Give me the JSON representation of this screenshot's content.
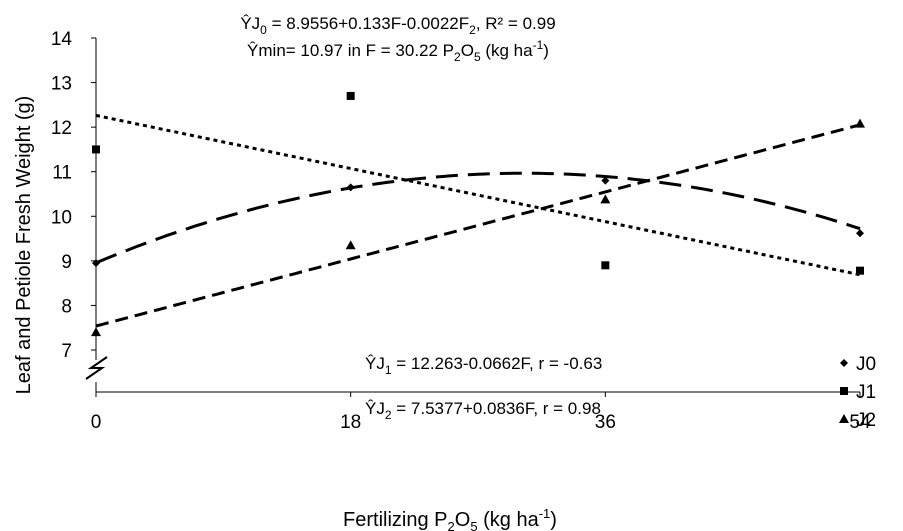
{
  "chart_data": {
    "type": "scatter",
    "title": "",
    "xlabel": {
      "prefix": "Fertilizing P",
      "sub": "2",
      "mid": "O",
      "sub2": "5",
      "unit_open": " (kg ha",
      "sup": "-1",
      "unit_close": ")"
    },
    "ylabel": "Leaf and Petiole Fresh Weight (g)",
    "x_ticks": [
      "0",
      "18",
      "36",
      "54"
    ],
    "y_ticks": [
      "7",
      "8",
      "9",
      "10",
      "11",
      "12",
      "13",
      "14"
    ],
    "xlim": [
      0,
      54
    ],
    "ylim": [
      7,
      14
    ],
    "y_axis_break": true,
    "grid": false,
    "legend_position": "bottom-right",
    "series": [
      {
        "name": "J0",
        "marker": "diamond",
        "x": [
          0,
          18,
          36,
          54
        ],
        "y": [
          8.95,
          10.65,
          10.8,
          9.62
        ],
        "fit": {
          "kind": "quadratic",
          "a": 8.9556,
          "b": 0.133,
          "c": -0.0022,
          "dash": "long"
        }
      },
      {
        "name": "J1",
        "marker": "square",
        "x": [
          0,
          18,
          36,
          54
        ],
        "y": [
          11.5,
          12.7,
          8.9,
          8.78
        ],
        "fit": {
          "kind": "linear",
          "a": 12.263,
          "b": -0.0662,
          "dash": "dotted"
        }
      },
      {
        "name": "J2",
        "marker": "triangle",
        "x": [
          0,
          18,
          36,
          54
        ],
        "y": [
          7.4,
          9.35,
          10.38,
          12.08
        ],
        "fit": {
          "kind": "linear",
          "a": 7.5377,
          "b": 0.0836,
          "dash": "medium"
        }
      }
    ],
    "annotations": {
      "eq_j0": {
        "lead": "Ŷ",
        "j": "J",
        "sub": "0",
        "body1": " = 8.9556+0.133F-0.0022F",
        "sub2": "2",
        "body2": ", R² = 0.99"
      },
      "ymin": {
        "lead": "Ŷmin= 10.97 in F = 30.22 P",
        "sub": "2",
        "mid": "O",
        "sub2": "5",
        "tail": " (kg ha",
        "sup": "-1",
        "close": ")"
      },
      "eq_j1": {
        "lead": "Ŷ",
        "j": "J",
        "sub": "1",
        "body": " = 12.263-0.0662F, r = -0.63"
      },
      "eq_j2": {
        "lead": "Ŷ",
        "j": "J",
        "sub": "2",
        "body": "  = 7.5377+0.0836F, r = 0.98"
      }
    }
  }
}
